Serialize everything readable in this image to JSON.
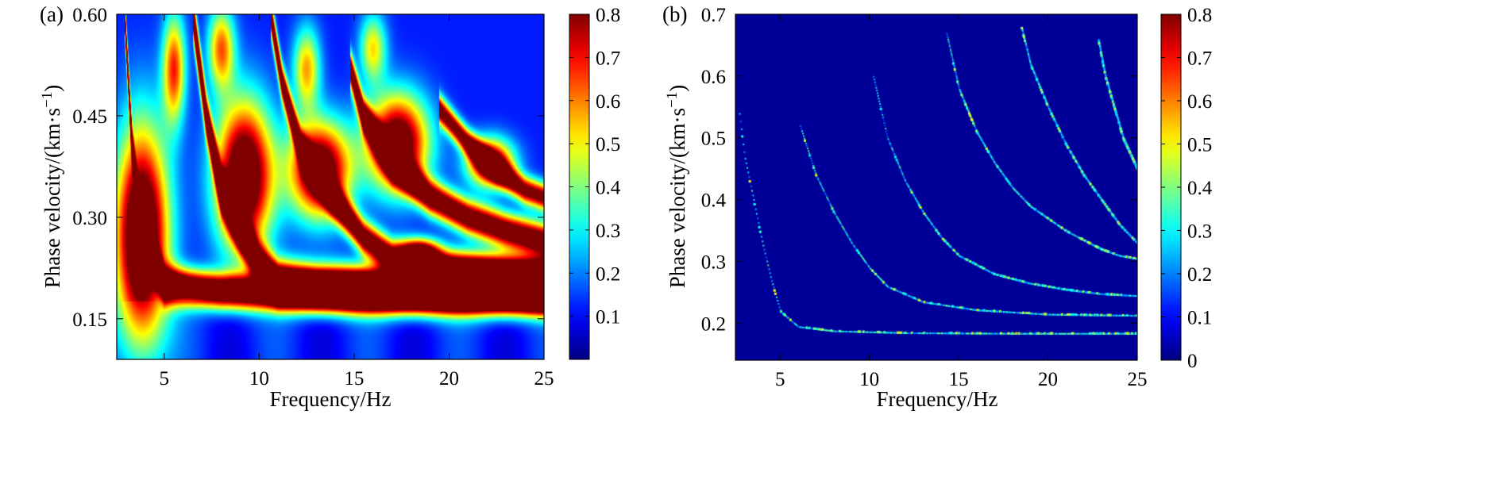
{
  "chart_data": [
    {
      "type": "heatmap",
      "panel_label": "(a)",
      "xlabel": "Frequency/Hz",
      "ylabel_main": "Phase velocity/(km·s",
      "ylabel_sup": "−1",
      "ylabel_end": ")",
      "xlim": [
        2.5,
        25
      ],
      "ylim": [
        0.09,
        0.6
      ],
      "xticks": [
        5,
        10,
        15,
        20,
        25
      ],
      "xtick_labels": [
        "5",
        "10",
        "15",
        "20",
        "25"
      ],
      "yticks": [
        0.15,
        0.3,
        0.45,
        0.6
      ],
      "ytick_labels": [
        "0.15",
        "0.30",
        "0.45",
        "0.60"
      ],
      "colorbar": {
        "range": [
          0,
          0.8
        ],
        "ticks": [
          0.1,
          0.2,
          0.3,
          0.4,
          0.5,
          0.6,
          0.7,
          0.8
        ],
        "tick_labels": [
          "0.1",
          "0.2",
          "0.3",
          "0.4",
          "0.5",
          "0.6",
          "0.7",
          "0.8"
        ]
      },
      "colormap": "jet",
      "background_value": 0.12,
      "ridges": [
        {
          "points": [
            [
              2.9,
              0.6
            ],
            [
              3.3,
              0.4
            ],
            [
              3.8,
              0.27
            ],
            [
              5.0,
              0.2
            ],
            [
              8,
              0.19
            ],
            [
              12,
              0.188
            ],
            [
              16,
              0.186
            ],
            [
              20,
              0.185
            ],
            [
              25,
              0.184
            ]
          ],
          "amp": 0.95,
          "width": 0.025
        },
        {
          "points": [
            [
              6.5,
              0.6
            ],
            [
              7.2,
              0.45
            ],
            [
              8.0,
              0.34
            ],
            [
              9.0,
              0.28
            ],
            [
              10.0,
              0.23
            ],
            [
              11.0,
              0.205
            ],
            [
              13,
              0.198
            ],
            [
              18,
              0.194
            ],
            [
              25,
              0.192
            ]
          ],
          "amp": 0.9,
          "width": 0.03
        },
        {
          "points": [
            [
              10.6,
              0.6
            ],
            [
              11.2,
              0.5
            ],
            [
              12.2,
              0.4
            ],
            [
              13.8,
              0.33
            ],
            [
              15.5,
              0.27
            ],
            [
              17,
              0.24
            ],
            [
              20,
              0.225
            ],
            [
              25,
              0.215
            ]
          ],
          "amp": 0.85,
          "width": 0.025
        },
        {
          "points": [
            [
              14.8,
              0.52
            ],
            [
              15.5,
              0.45
            ],
            [
              17,
              0.38
            ],
            [
              19,
              0.33
            ],
            [
              21,
              0.3
            ],
            [
              23,
              0.28
            ],
            [
              25,
              0.265
            ]
          ],
          "amp": 0.85,
          "width": 0.025
        },
        {
          "points": [
            [
              19.5,
              0.46
            ],
            [
              21,
              0.41
            ],
            [
              22.5,
              0.37
            ],
            [
              24,
              0.34
            ],
            [
              25,
              0.33
            ]
          ],
          "amp": 0.75,
          "width": 0.02
        }
      ],
      "blobs": [
        {
          "x": 3.8,
          "y": 0.27,
          "sx": 1.4,
          "sy": 0.16,
          "amp": 0.95
        },
        {
          "x": 9.2,
          "y": 0.36,
          "sx": 1.5,
          "sy": 0.11,
          "amp": 0.9
        },
        {
          "x": 13.2,
          "y": 0.37,
          "sx": 1.6,
          "sy": 0.07,
          "amp": 0.85
        },
        {
          "x": 17.3,
          "y": 0.41,
          "sx": 1.6,
          "sy": 0.07,
          "amp": 0.85
        },
        {
          "x": 22.2,
          "y": 0.38,
          "sx": 1.2,
          "sy": 0.035,
          "amp": 0.75
        },
        {
          "x": 18.5,
          "y": 0.25,
          "sx": 1.0,
          "sy": 0.018,
          "amp": 0.55
        },
        {
          "x": 5.5,
          "y": 0.52,
          "sx": 0.6,
          "sy": 0.08,
          "amp": 0.55
        },
        {
          "x": 8.0,
          "y": 0.55,
          "sx": 0.7,
          "sy": 0.06,
          "amp": 0.5
        },
        {
          "x": 12.5,
          "y": 0.52,
          "sx": 0.7,
          "sy": 0.06,
          "amp": 0.45
        },
        {
          "x": 16.0,
          "y": 0.55,
          "sx": 0.7,
          "sy": 0.05,
          "amp": 0.4
        }
      ]
    },
    {
      "type": "heatmap",
      "panel_label": "(b)",
      "xlabel": "Frequency/Hz",
      "ylabel_main": "Phase velocity/(km·s",
      "ylabel_sup": "−1",
      "ylabel_end": ")",
      "xlim": [
        2.5,
        25
      ],
      "ylim": [
        0.14,
        0.7
      ],
      "xticks": [
        5,
        10,
        15,
        20,
        25
      ],
      "xtick_labels": [
        "5",
        "10",
        "15",
        "20",
        "25"
      ],
      "yticks": [
        0.2,
        0.3,
        0.4,
        0.5,
        0.6,
        0.7
      ],
      "ytick_labels": [
        "0.2",
        "0.3",
        "0.4",
        "0.5",
        "0.6",
        "0.7"
      ],
      "colorbar": {
        "range": [
          0,
          0.8
        ],
        "ticks": [
          0,
          0.1,
          0.2,
          0.3,
          0.4,
          0.5,
          0.6,
          0.7,
          0.8
        ],
        "tick_labels": [
          "0",
          "0.1",
          "0.2",
          "0.3",
          "0.4",
          "0.5",
          "0.6",
          "0.7",
          "0.8"
        ]
      },
      "colormap": "jet",
      "background_value": 0.02,
      "curves": [
        {
          "points": [
            [
              2.7,
              0.54
            ],
            [
              3.0,
              0.47
            ],
            [
              3.5,
              0.4
            ],
            [
              4.0,
              0.33
            ],
            [
              4.5,
              0.27
            ],
            [
              5.0,
              0.22
            ],
            [
              6,
              0.195
            ],
            [
              8,
              0.188
            ],
            [
              12,
              0.185
            ],
            [
              18,
              0.184
            ],
            [
              25,
              0.184
            ]
          ],
          "amp": 0.32
        },
        {
          "points": [
            [
              6.1,
              0.52
            ],
            [
              7,
              0.44
            ],
            [
              8,
              0.38
            ],
            [
              9,
              0.33
            ],
            [
              10,
              0.29
            ],
            [
              11,
              0.26
            ],
            [
              13,
              0.235
            ],
            [
              16,
              0.222
            ],
            [
              20,
              0.215
            ],
            [
              25,
              0.213
            ]
          ],
          "amp": 0.3
        },
        {
          "points": [
            [
              10.2,
              0.6
            ],
            [
              11,
              0.5
            ],
            [
              12,
              0.43
            ],
            [
              13,
              0.38
            ],
            [
              14,
              0.34
            ],
            [
              15,
              0.31
            ],
            [
              17,
              0.28
            ],
            [
              19,
              0.265
            ],
            [
              21,
              0.255
            ],
            [
              23,
              0.248
            ],
            [
              25,
              0.245
            ]
          ],
          "amp": 0.28
        },
        {
          "points": [
            [
              14.3,
              0.67
            ],
            [
              15,
              0.58
            ],
            [
              16,
              0.51
            ],
            [
              17,
              0.46
            ],
            [
              18,
              0.42
            ],
            [
              19,
              0.39
            ],
            [
              20,
              0.37
            ],
            [
              21,
              0.35
            ],
            [
              22,
              0.335
            ],
            [
              23,
              0.32
            ],
            [
              24,
              0.31
            ],
            [
              25,
              0.305
            ]
          ],
          "amp": 0.3
        },
        {
          "points": [
            [
              18.5,
              0.68
            ],
            [
              19,
              0.62
            ],
            [
              20,
              0.55
            ],
            [
              21,
              0.49
            ],
            [
              22,
              0.44
            ],
            [
              23,
              0.4
            ],
            [
              24,
              0.36
            ],
            [
              25,
              0.33
            ]
          ],
          "amp": 0.28
        },
        {
          "points": [
            [
              22.8,
              0.66
            ],
            [
              23.2,
              0.6
            ],
            [
              23.7,
              0.55
            ],
            [
              24.2,
              0.5
            ],
            [
              25,
              0.45
            ]
          ],
          "amp": 0.28
        }
      ]
    }
  ]
}
